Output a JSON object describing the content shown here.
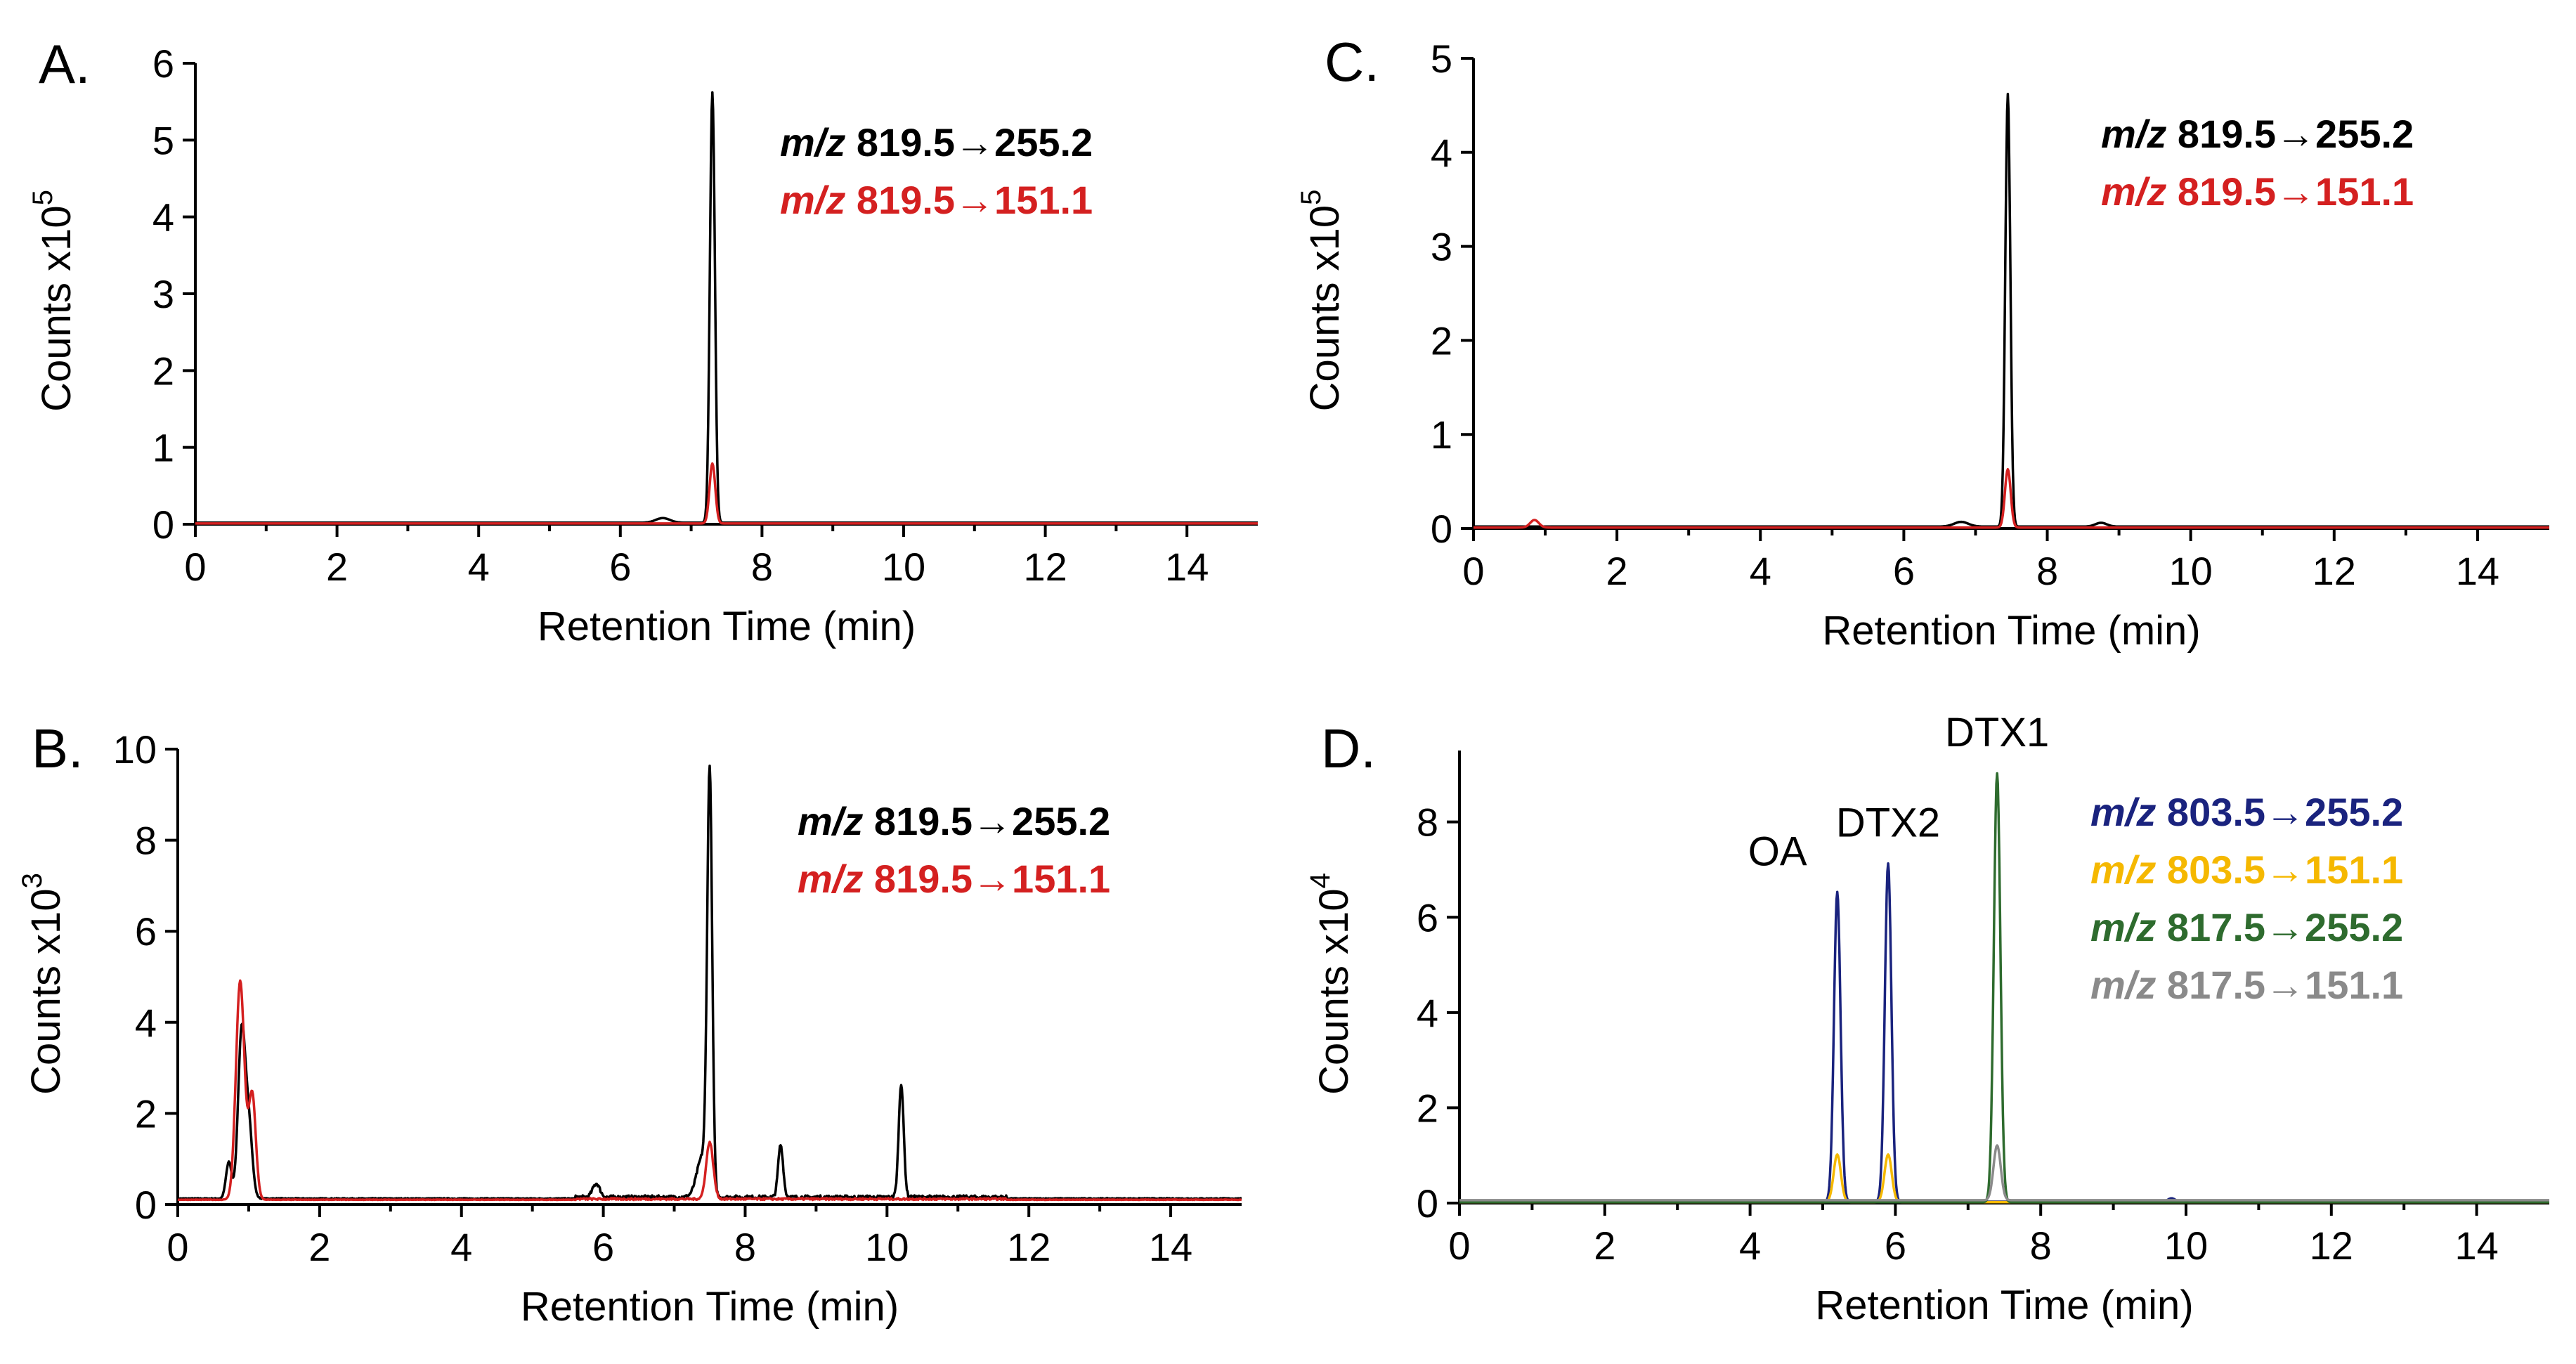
{
  "chart_data": [
    {
      "panel": "A.",
      "type": "line",
      "xlabel": "Retention Time (min)",
      "ylabel": "Counts x10",
      "ylabel_exponent": "5",
      "xlim": [
        0,
        15
      ],
      "ylim": [
        0,
        6
      ],
      "xticks": [
        0,
        2,
        4,
        6,
        8,
        10,
        12,
        14
      ],
      "yticks": [
        0,
        1,
        2,
        3,
        4,
        5,
        6
      ],
      "legend_position": "top-right",
      "grid": false,
      "series": [
        {
          "name": "m/z 819.5→255.2",
          "legend_prefix": "m/z",
          "legend_rest": " 819.5→255.2",
          "color": "#000000",
          "baseline": 0.02,
          "peaks": [
            {
              "x": 6.6,
              "h": 0.06,
              "w": 0.1
            },
            {
              "x": 7.3,
              "h": 5.6,
              "w": 0.035
            }
          ]
        },
        {
          "name": "m/z 819.5→151.1",
          "legend_prefix": "m/z",
          "legend_rest": " 819.5→151.1",
          "color": "#d42020",
          "baseline": 0.01,
          "peaks": [
            {
              "x": 7.3,
              "h": 0.78,
              "w": 0.04
            }
          ]
        }
      ],
      "annotations": []
    },
    {
      "panel": "B.",
      "type": "line",
      "xlabel": "Retention Time (min)",
      "ylabel": "Counts x10",
      "ylabel_exponent": "3",
      "xlim": [
        0,
        15
      ],
      "ylim": [
        0,
        10
      ],
      "xticks": [
        0,
        2,
        4,
        6,
        8,
        10,
        12,
        14
      ],
      "yticks": [
        0,
        2,
        4,
        6,
        8,
        10
      ],
      "legend_position": "top-right",
      "grid": false,
      "series": [
        {
          "name": "m/z 819.5→255.2",
          "legend_prefix": "m/z",
          "legend_rest": " 819.5→255.2",
          "color": "#000000",
          "baseline": 0.12,
          "noise": 0.08,
          "peaks": [
            {
              "x": 0.72,
              "h": 0.8,
              "w": 0.04
            },
            {
              "x": 0.9,
              "h": 3.6,
              "w": 0.05
            },
            {
              "x": 1.0,
              "h": 1.6,
              "w": 0.05
            },
            {
              "x": 5.9,
              "h": 0.3,
              "w": 0.05
            },
            {
              "x": 7.4,
              "h": 0.9,
              "w": 0.08
            },
            {
              "x": 7.5,
              "h": 9.1,
              "w": 0.035
            },
            {
              "x": 8.5,
              "h": 1.15,
              "w": 0.035
            },
            {
              "x": 10.2,
              "h": 2.5,
              "w": 0.035
            }
          ]
        },
        {
          "name": "m/z 819.5→151.1",
          "legend_prefix": "m/z",
          "legend_rest": " 819.5→151.1",
          "color": "#d42020",
          "baseline": 0.1,
          "noise": 0.04,
          "peaks": [
            {
              "x": 0.88,
              "h": 4.8,
              "w": 0.06
            },
            {
              "x": 1.05,
              "h": 2.3,
              "w": 0.05
            },
            {
              "x": 7.5,
              "h": 1.25,
              "w": 0.05
            }
          ]
        }
      ],
      "annotations": []
    },
    {
      "panel": "C.",
      "type": "line",
      "xlabel": "Retention Time (min)",
      "ylabel": "Counts x10",
      "ylabel_exponent": "5",
      "xlim": [
        0,
        15
      ],
      "ylim": [
        0,
        5
      ],
      "xticks": [
        0,
        2,
        4,
        6,
        8,
        10,
        12,
        14
      ],
      "yticks": [
        0,
        1,
        2,
        3,
        4,
        5
      ],
      "legend_position": "top-right",
      "grid": false,
      "series": [
        {
          "name": "m/z 819.5→255.2",
          "legend_prefix": "m/z",
          "legend_rest": " 819.5→255.2",
          "color": "#000000",
          "baseline": 0.02,
          "peaks": [
            {
              "x": 6.8,
              "h": 0.05,
              "w": 0.1
            },
            {
              "x": 7.45,
              "h": 4.6,
              "w": 0.035
            },
            {
              "x": 8.75,
              "h": 0.04,
              "w": 0.08
            }
          ]
        },
        {
          "name": "m/z 819.5→151.1",
          "legend_prefix": "m/z",
          "legend_rest": " 819.5→151.1",
          "color": "#d42020",
          "baseline": 0.01,
          "peaks": [
            {
              "x": 0.85,
              "h": 0.08,
              "w": 0.06
            },
            {
              "x": 7.45,
              "h": 0.62,
              "w": 0.04
            }
          ]
        }
      ],
      "annotations": []
    },
    {
      "panel": "D.",
      "type": "line",
      "xlabel": "Retention Time (min)",
      "ylabel": "Counts x10",
      "ylabel_exponent": "4",
      "xlim": [
        0,
        15
      ],
      "ylim": [
        0,
        9.5
      ],
      "xticks": [
        0,
        2,
        4,
        6,
        8,
        10,
        12,
        14
      ],
      "yticks": [
        0,
        2,
        4,
        6,
        8
      ],
      "legend_position": "top-right",
      "grid": false,
      "series": [
        {
          "name": "m/z 803.5→255.2",
          "legend_prefix": "m/z",
          "legend_rest": " 803.5→255.2",
          "color": "#1a237e",
          "baseline": 0.03,
          "peaks": [
            {
              "x": 5.2,
              "h": 6.5,
              "w": 0.045
            },
            {
              "x": 5.9,
              "h": 7.1,
              "w": 0.045
            },
            {
              "x": 9.8,
              "h": 0.07,
              "w": 0.05
            }
          ]
        },
        {
          "name": "m/z 803.5→151.1",
          "legend_prefix": "m/z",
          "legend_rest": " 803.5→151.1",
          "color": "#f5b800",
          "baseline": 0.02,
          "peaks": [
            {
              "x": 5.2,
              "h": 1.0,
              "w": 0.05
            },
            {
              "x": 5.9,
              "h": 1.0,
              "w": 0.05
            }
          ]
        },
        {
          "name": "m/z 817.5→255.2",
          "legend_prefix": "m/z",
          "legend_rest": " 817.5→255.2",
          "color": "#2e6b2e",
          "baseline": 0.02,
          "peaks": [
            {
              "x": 7.4,
              "h": 9.0,
              "w": 0.045
            }
          ]
        },
        {
          "name": "m/z 817.5→151.1",
          "legend_prefix": "m/z",
          "legend_rest": " 817.5→151.1",
          "color": "#8a8a8a",
          "baseline": 0.06,
          "peaks": [
            {
              "x": 7.4,
              "h": 1.15,
              "w": 0.05
            }
          ]
        }
      ],
      "annotations": [
        {
          "text": "OA",
          "x": 5.2,
          "y": 6.5
        },
        {
          "text": "DTX2",
          "x": 5.9,
          "y": 7.1
        },
        {
          "text": "DTX1",
          "x": 7.4,
          "y": 9.0
        }
      ]
    }
  ]
}
